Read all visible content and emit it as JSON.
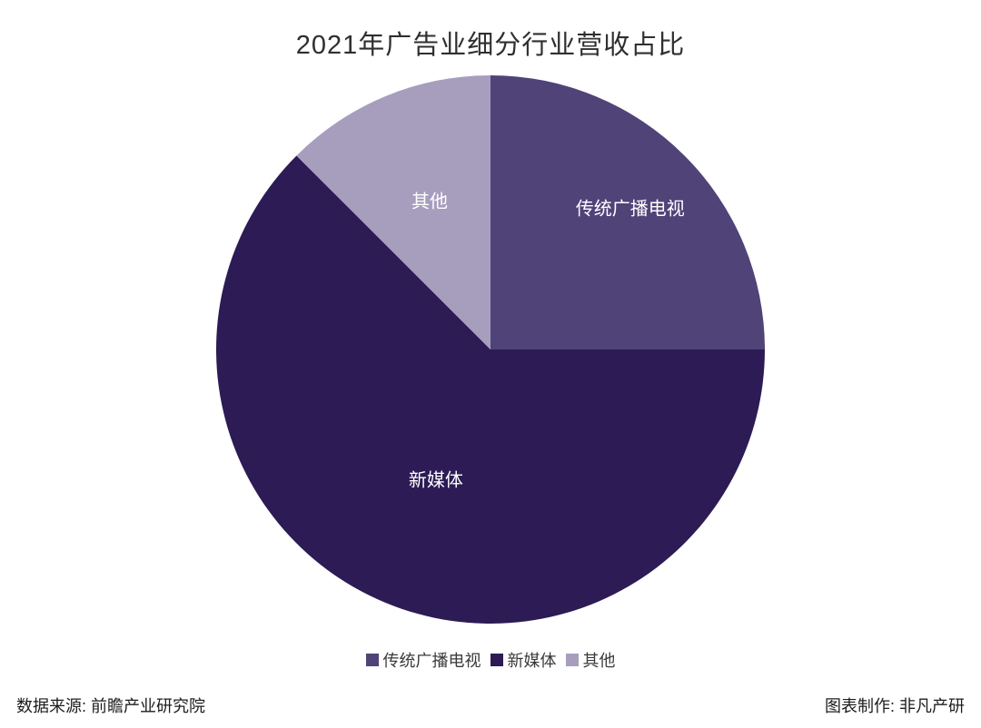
{
  "title": "2021年广告业细分行业营收占比",
  "chart_data": {
    "type": "pie",
    "title": "2021年广告业细分行业营收占比",
    "unit": "percent",
    "start_angle_deg": 0,
    "direction": "clockwise",
    "labels_inside": true,
    "label_color": "#ffffff",
    "legend_position": "bottom",
    "slices": [
      {
        "label": "传统广播电视",
        "value": 25,
        "color": "#4f4378",
        "label_r": 0.72
      },
      {
        "label": "新媒体",
        "value": 62.5,
        "color": "#2c1b54",
        "label_r": 0.52
      },
      {
        "label": "其他",
        "value": 12.5,
        "color": "#a79ebe",
        "label_r": 0.58
      }
    ]
  },
  "footer": {
    "source": "数据来源: 前瞻产业研究院",
    "credit": "图表制作: 非凡产研"
  }
}
